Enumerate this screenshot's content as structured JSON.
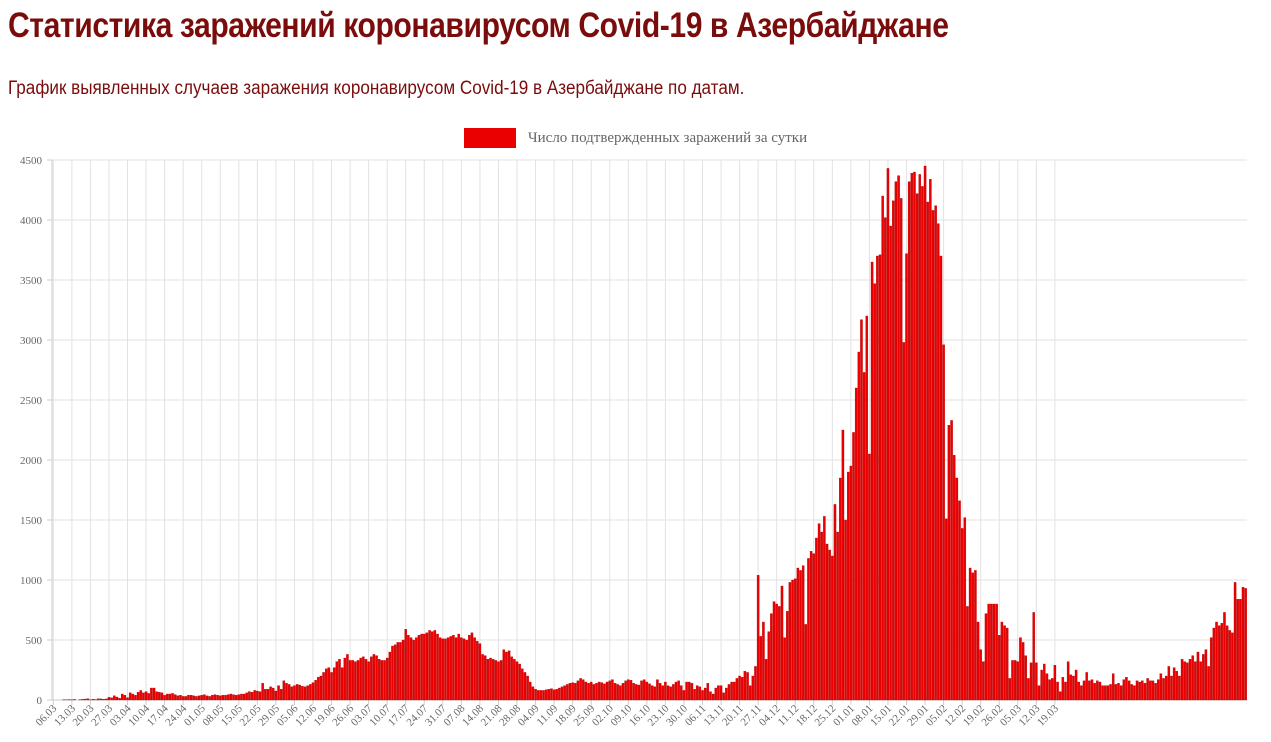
{
  "page": {
    "title": "Статистика заражений коронавирусом Covid-19 в Азербайджане",
    "subtitle": "График выявленных случаев заражения коронавирусом Covid-19 в Азербайджане по датам."
  },
  "colors": {
    "title": "#7a0c0c",
    "bar": "#ea0000",
    "bar_border": "#b00000",
    "grid": "#e2e2e2",
    "axis_text": "#666666"
  },
  "chart_data": {
    "type": "bar",
    "title": "",
    "xlabel": "",
    "ylabel": "",
    "ylim": [
      0,
      4500
    ],
    "yticks": [
      0,
      500,
      1000,
      1500,
      2000,
      2500,
      3000,
      3500,
      4000,
      4500
    ],
    "grid": true,
    "legend_position": "top-center",
    "x_tick_labels": [
      "06.03",
      "13.03",
      "20.03",
      "27.03",
      "03.04",
      "10.04",
      "17.04",
      "24.04",
      "01.05",
      "08.05",
      "15.05",
      "22.05",
      "29.05",
      "05.06",
      "12.06",
      "19.06",
      "26.06",
      "03.07",
      "10.07",
      "17.07",
      "24.07",
      "31.07",
      "07.08",
      "14.08",
      "21.08",
      "28.08",
      "04.09",
      "11.09",
      "18.09",
      "25.09",
      "02.10",
      "09.10",
      "16.10",
      "23.10",
      "30.10",
      "06.11",
      "13.11",
      "20.11",
      "27.11",
      "04.12",
      "11.12",
      "18.12",
      "25.12",
      "01.01",
      "08.01",
      "15.01",
      "22.01",
      "29.01",
      "05.02",
      "12.02",
      "19.02",
      "26.02",
      "05.03",
      "12.03",
      "19.03"
    ],
    "series": [
      {
        "name": "Число подтвержденных заражений за сутки",
        "values": [
          0,
          0,
          0,
          0,
          3,
          2,
          4,
          2,
          5,
          0,
          3,
          6,
          8,
          11,
          3,
          6,
          4,
          11,
          9,
          7,
          9,
          22,
          18,
          36,
          25,
          15,
          50,
          40,
          20,
          60,
          50,
          40,
          65,
          80,
          60,
          70,
          55,
          100,
          100,
          70,
          65,
          60,
          40,
          50,
          50,
          55,
          45,
          35,
          40,
          30,
          30,
          40,
          40,
          35,
          30,
          35,
          40,
          45,
          35,
          30,
          40,
          45,
          40,
          35,
          40,
          40,
          45,
          50,
          45,
          40,
          45,
          50,
          50,
          60,
          70,
          65,
          80,
          75,
          70,
          140,
          90,
          90,
          110,
          100,
          75,
          120,
          90,
          160,
          140,
          130,
          110,
          120,
          130,
          125,
          115,
          110,
          120,
          130,
          145,
          165,
          190,
          200,
          230,
          260,
          270,
          230,
          270,
          320,
          340,
          270,
          350,
          380,
          330,
          330,
          320,
          330,
          350,
          360,
          340,
          320,
          360,
          380,
          370,
          340,
          330,
          330,
          350,
          400,
          450,
          460,
          480,
          480,
          500,
          590,
          540,
          520,
          500,
          520,
          540,
          550,
          550,
          560,
          580,
          570,
          580,
          550,
          520,
          510,
          510,
          520,
          530,
          540,
          520,
          550,
          520,
          510,
          500,
          540,
          560,
          520,
          490,
          470,
          380,
          370,
          340,
          350,
          340,
          330,
          320,
          330,
          420,
          400,
          410,
          360,
          340,
          320,
          300,
          260,
          230,
          200,
          150,
          110,
          90,
          80,
          80,
          80,
          85,
          90,
          95,
          85,
          90,
          100,
          110,
          120,
          130,
          140,
          145,
          140,
          160,
          180,
          170,
          150,
          140,
          150,
          130,
          140,
          150,
          145,
          135,
          150,
          160,
          170,
          140,
          130,
          120,
          140,
          160,
          170,
          165,
          140,
          130,
          125,
          160,
          170,
          150,
          135,
          120,
          110,
          170,
          140,
          120,
          150,
          120,
          110,
          130,
          150,
          160,
          120,
          80,
          150,
          150,
          140,
          90,
          120,
          110,
          80,
          100,
          140,
          70,
          50,
          100,
          120,
          120,
          60,
          100,
          130,
          150,
          150,
          180,
          200,
          190,
          240,
          230,
          120,
          200,
          280,
          1040,
          530,
          650,
          340,
          570,
          720,
          820,
          800,
          780,
          950,
          520,
          740,
          980,
          1000,
          1010,
          1100,
          1080,
          1120,
          630,
          1180,
          1240,
          1220,
          1350,
          1470,
          1400,
          1530,
          1300,
          1250,
          1200,
          1630,
          1400,
          1850,
          2250,
          1500,
          1900,
          1950,
          2230,
          2600,
          2900,
          3170,
          2730,
          3200,
          2050,
          3650,
          3470,
          3700,
          3710,
          4200,
          4020,
          4430,
          3950,
          4160,
          4320,
          4370,
          4180,
          2980,
          3720,
          4320,
          4390,
          4400,
          4220,
          4380,
          4280,
          4450,
          4150,
          4340,
          4080,
          4120,
          3970,
          3700,
          2960,
          1510,
          2290,
          2330,
          2040,
          1850,
          1660,
          1430,
          1520,
          780,
          1100,
          1060,
          1080,
          650,
          420,
          320,
          720,
          800,
          800,
          800,
          800,
          540,
          650,
          620,
          600,
          180,
          330,
          330,
          320,
          520,
          480,
          370,
          180,
          310,
          730,
          310,
          120,
          250,
          300,
          220,
          170,
          180,
          290,
          150,
          70,
          190,
          150,
          320,
          210,
          200,
          250,
          150,
          120,
          160,
          230,
          160,
          170,
          140,
          160,
          150,
          120,
          120,
          120,
          130,
          220,
          130,
          140,
          120,
          170,
          190,
          160,
          130,
          120,
          160,
          150,
          160,
          140,
          180,
          160,
          160,
          140,
          170,
          220,
          180,
          200,
          280,
          200,
          270,
          240,
          200,
          340,
          320,
          310,
          340,
          370,
          320,
          400,
          320,
          380,
          420,
          280,
          520,
          600,
          650,
          620,
          640,
          730,
          620,
          580,
          560,
          980,
          840,
          840,
          940,
          930
        ]
      }
    ]
  }
}
